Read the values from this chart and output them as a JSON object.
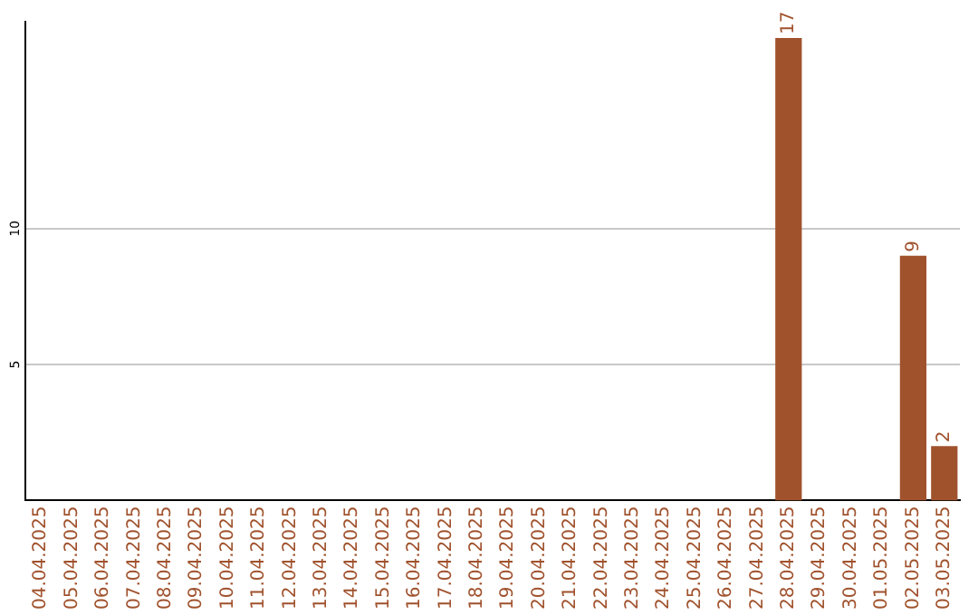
{
  "chart_data": {
    "type": "bar",
    "categories": [
      "04.04.2025",
      "05.04.2025",
      "06.04.2025",
      "07.04.2025",
      "08.04.2025",
      "09.04.2025",
      "10.04.2025",
      "11.04.2025",
      "12.04.2025",
      "13.04.2025",
      "14.04.2025",
      "15.04.2025",
      "16.04.2025",
      "17.04.2025",
      "18.04.2025",
      "19.04.2025",
      "20.04.2025",
      "21.04.2025",
      "22.04.2025",
      "23.04.2025",
      "24.04.2025",
      "25.04.2025",
      "26.04.2025",
      "27.04.2025",
      "28.04.2025",
      "29.04.2025",
      "30.04.2025",
      "01.05.2025",
      "02.05.2025",
      "03.05.2025"
    ],
    "values": [
      0,
      0,
      0,
      0,
      0,
      0,
      0,
      0,
      0,
      0,
      0,
      0,
      0,
      0,
      0,
      0,
      0,
      0,
      0,
      0,
      0,
      0,
      0,
      0,
      17,
      0,
      0,
      0,
      9,
      2
    ],
    "value_labels": [
      null,
      null,
      null,
      null,
      null,
      null,
      null,
      null,
      null,
      null,
      null,
      null,
      null,
      null,
      null,
      null,
      null,
      null,
      null,
      null,
      null,
      null,
      null,
      null,
      "17",
      null,
      null,
      null,
      "9",
      "2"
    ],
    "color": "#a0522d",
    "ylim": [
      0,
      17.6
    ],
    "yticks": [
      5,
      10
    ],
    "grid": "y",
    "legend": false
  }
}
